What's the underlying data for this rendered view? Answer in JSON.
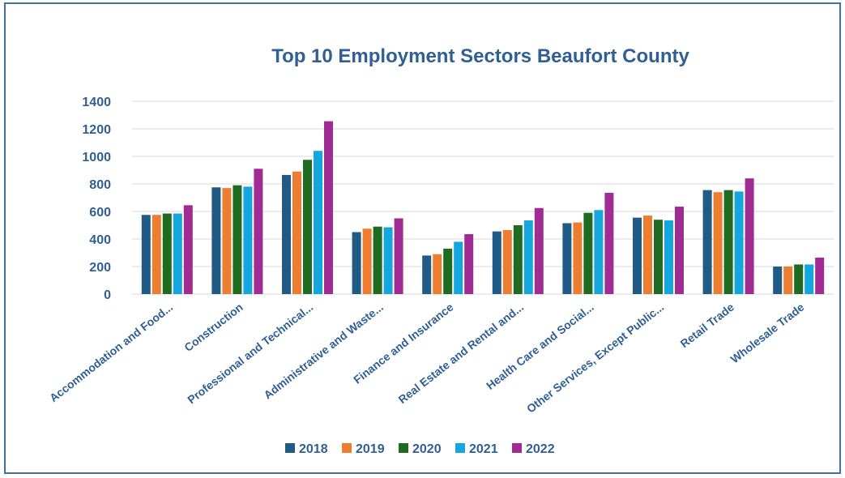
{
  "chart_data": {
    "type": "bar",
    "title": "Top 10 Employment Sectors Beaufort County",
    "xlabel": "",
    "ylabel": "",
    "ylim": [
      0,
      1400
    ],
    "yticks": [
      "0",
      "200",
      "400",
      "600",
      "800",
      "1000",
      "1200",
      "1400"
    ],
    "grid": true,
    "legend_position": "bottom",
    "categories": [
      "Accommodation and Food...",
      "Construction",
      "Professional and Technical...",
      "Administrative and Waste...",
      "Finance and Insurance",
      "Real Estate and Rental and...",
      "Health Care and Social...",
      "Other Services, Except Public...",
      "Retail Trade",
      "Wholesale Trade"
    ],
    "series": [
      {
        "name": "2018",
        "color": "#1f5b85",
        "values": [
          575,
          775,
          865,
          450,
          280,
          455,
          515,
          555,
          755,
          200
        ]
      },
      {
        "name": "2019",
        "color": "#ed7d31",
        "values": [
          575,
          770,
          890,
          475,
          290,
          465,
          520,
          570,
          740,
          200
        ]
      },
      {
        "name": "2020",
        "color": "#1e6b21",
        "values": [
          585,
          790,
          975,
          490,
          330,
          500,
          590,
          540,
          755,
          215
        ]
      },
      {
        "name": "2021",
        "color": "#16a6de",
        "values": [
          585,
          780,
          1040,
          485,
          380,
          535,
          610,
          535,
          745,
          215
        ]
      },
      {
        "name": "2022",
        "color": "#a02b93",
        "values": [
          645,
          910,
          1255,
          550,
          435,
          625,
          735,
          635,
          840,
          265
        ]
      }
    ]
  }
}
